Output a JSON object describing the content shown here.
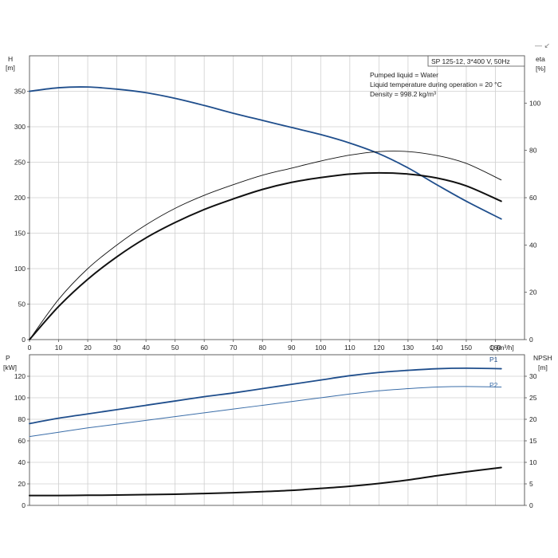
{
  "colors": {
    "head": "#1f4e8c",
    "eta": "#111111",
    "eta_pump": "#111111",
    "p1": "#1f4e8c",
    "p2": "#3a6da8",
    "npsh": "#111111",
    "grid": "#cfcfcf",
    "legend_dash": "#888888"
  },
  "header": {
    "h_axis_label": "H",
    "h_axis_unit": "[m]",
    "eta_axis_label": "eta",
    "eta_axis_unit": "[%]",
    "p_axis_label": "P",
    "p_axis_unit": "[kW]",
    "npsh_axis_label": "NPSH",
    "npsh_axis_unit": "[m]",
    "q_axis_label": "Q [m³/h]",
    "legend_marker": "— ↙"
  },
  "infobox": {
    "title": "SP 125-12, 3*400 V, 50Hz",
    "line1": "Pumped liquid = Water",
    "line2": "Liquid temperature during operation = 20 °C",
    "line3": "Density = 998.2 kg/m³"
  },
  "chart_data": [
    {
      "type": "line",
      "title": "SP 125-12, 3*400 V, 50Hz",
      "xlabel": "Q [m³/h]",
      "ylabel": "H [m]",
      "y2label": "eta [%]",
      "xlim": [
        0,
        170
      ],
      "ylim": [
        0,
        400
      ],
      "y2lim": [
        0,
        120
      ],
      "xticks": [
        0,
        10,
        20,
        30,
        40,
        50,
        60,
        70,
        80,
        90,
        100,
        110,
        120,
        130,
        140,
        150,
        160
      ],
      "yticks": [
        0,
        50,
        100,
        150,
        200,
        250,
        300,
        350
      ],
      "y2ticks": [
        0,
        20,
        40,
        60,
        80,
        100
      ],
      "grid": true,
      "series": [
        {
          "key": "head",
          "axis": "left",
          "x": [
            0,
            10,
            20,
            30,
            40,
            50,
            60,
            70,
            80,
            90,
            100,
            110,
            120,
            130,
            140,
            150,
            162
          ],
          "values": [
            350,
            355,
            356,
            353,
            348,
            340,
            330,
            319,
            309,
            299,
            289,
            277,
            262,
            242,
            218,
            195,
            170
          ]
        },
        {
          "key": "eta",
          "axis": "right",
          "x": [
            0,
            10,
            20,
            30,
            40,
            50,
            60,
            70,
            80,
            90,
            100,
            110,
            120,
            130,
            140,
            150,
            162
          ],
          "values": [
            0,
            14,
            25.5,
            35,
            43,
            49.5,
            55,
            59.5,
            63.5,
            66.5,
            68.5,
            70,
            70.5,
            70,
            68.3,
            65,
            58.5
          ]
        },
        {
          "key": "eta_pump",
          "axis": "right",
          "x": [
            0,
            10,
            20,
            30,
            40,
            50,
            60,
            70,
            80,
            90,
            100,
            110,
            120,
            130,
            140,
            150,
            162
          ],
          "values": [
            0,
            17,
            30,
            40,
            48.5,
            55.5,
            61,
            65.5,
            69.5,
            72.5,
            75.5,
            78,
            79.5,
            79.5,
            77.8,
            74.5,
            67.5
          ]
        }
      ]
    },
    {
      "type": "line",
      "xlabel": "Q [m³/h]",
      "ylabel": "P [kW]",
      "y2label": "NPSH [m]",
      "xlim": [
        0,
        170
      ],
      "ylim": [
        0,
        140
      ],
      "y2lim": [
        0,
        35
      ],
      "yticks": [
        0,
        20,
        40,
        60,
        80,
        100,
        120
      ],
      "y2ticks": [
        0,
        5,
        10,
        15,
        20,
        25,
        30
      ],
      "grid": true,
      "series": [
        {
          "name": "P1",
          "key": "p1",
          "axis": "left",
          "x": [
            0,
            10,
            20,
            30,
            40,
            50,
            60,
            70,
            80,
            90,
            100,
            110,
            120,
            130,
            140,
            150,
            162
          ],
          "values": [
            76,
            81,
            85,
            89,
            93,
            97,
            101,
            104.5,
            108.5,
            112.5,
            116.5,
            120.5,
            123.5,
            125.5,
            127,
            127.5,
            127
          ]
        },
        {
          "name": "P2",
          "key": "p2",
          "axis": "left",
          "x": [
            0,
            10,
            20,
            30,
            40,
            50,
            60,
            70,
            80,
            90,
            100,
            110,
            120,
            130,
            140,
            150,
            162
          ],
          "values": [
            64,
            68,
            72,
            75.5,
            79,
            82.5,
            86,
            89.5,
            93,
            96.5,
            100,
            103.5,
            106.5,
            108.5,
            110,
            110.5,
            110
          ]
        },
        {
          "key": "npsh",
          "axis": "right",
          "x": [
            0,
            10,
            20,
            30,
            40,
            50,
            60,
            70,
            80,
            90,
            100,
            110,
            120,
            130,
            140,
            150,
            162
          ],
          "values": [
            2.3,
            2.3,
            2.35,
            2.4,
            2.5,
            2.6,
            2.75,
            2.95,
            3.2,
            3.5,
            3.95,
            4.45,
            5.1,
            5.9,
            6.9,
            7.8,
            8.8
          ]
        }
      ]
    }
  ]
}
